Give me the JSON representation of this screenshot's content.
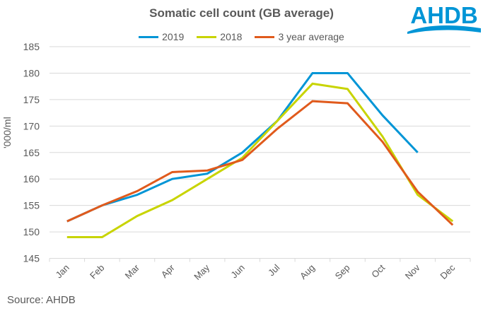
{
  "chart_data": {
    "type": "line",
    "title": "Somatic cell count (GB average)",
    "ylabel": "'000/ml",
    "xlabel": "",
    "categories": [
      "Jan",
      "Feb",
      "Mar",
      "Apr",
      "May",
      "Jun",
      "Jul",
      "Aug",
      "Sep",
      "Oct",
      "Nov",
      "Dec"
    ],
    "ylim": [
      145,
      185
    ],
    "yticks": [
      145,
      150,
      155,
      160,
      165,
      170,
      175,
      180,
      185
    ],
    "grid": true,
    "legend": "top",
    "series": [
      {
        "name": "2019",
        "color": "#0095D6",
        "values": [
          152,
          155,
          157,
          160,
          161,
          165,
          171,
          180,
          180,
          172,
          165,
          null
        ]
      },
      {
        "name": "2018",
        "color": "#C8D400",
        "values": [
          149,
          149,
          153,
          156,
          160,
          164,
          171,
          178,
          177,
          168,
          157,
          152
        ]
      },
      {
        "name": "3 year average",
        "color": "#E05A1C",
        "values": [
          152,
          155,
          157.7,
          161.3,
          161.6,
          163.6,
          169.5,
          174.7,
          174.3,
          167,
          157.6,
          151.3
        ]
      }
    ]
  },
  "source": "Source: AHDB",
  "logo": {
    "text": "AHDB",
    "color": "#0095D6"
  }
}
